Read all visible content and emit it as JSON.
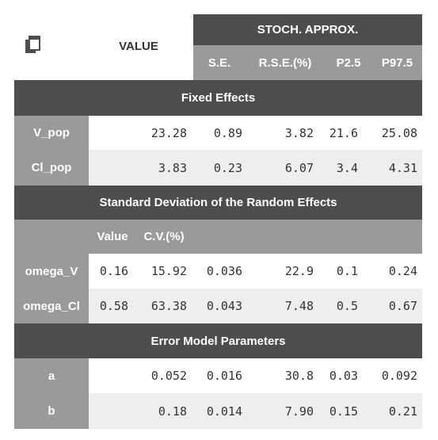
{
  "header": {
    "value_label": "VALUE",
    "stoch_label": "STOCH. APPROX.",
    "col_se": "S.E.",
    "col_rse": "R.S.E.(%)",
    "col_p25": "P2.5",
    "col_p975": "P97.5",
    "copy_icon": "copy-icon"
  },
  "sections": {
    "fixed": "Fixed Effects",
    "sd": "Standard Deviation of the Random Effects",
    "error": "Error Model Parameters"
  },
  "sd_subheader": {
    "value": "Value",
    "cv": "C.V.(%)"
  },
  "rows": [
    {
      "name": "V_pop",
      "value": "23.28",
      "se": "0.89",
      "rse": "3.82",
      "p25": "21.6",
      "p975": "25.08"
    },
    {
      "name": "Cl_pop",
      "value": "3.83",
      "se": "0.23",
      "rse": "6.07",
      "p25": "3.4",
      "p975": "4.31"
    },
    {
      "name": "omega_V",
      "value": "0.16",
      "cv": "15.92",
      "se": "0.036",
      "rse": "22.9",
      "p25": "0.1",
      "p975": "0.24"
    },
    {
      "name": "omega_Cl",
      "value": "0.58",
      "cv": "63.38",
      "se": "0.043",
      "rse": "7.48",
      "p25": "0.5",
      "p975": "0.67"
    },
    {
      "name": "a",
      "value": "0.052",
      "se": "0.016",
      "rse": "30.8",
      "p25": "0.03",
      "p975": "0.092"
    },
    {
      "name": "b",
      "value": "0.18",
      "se": "0.014",
      "rse": "7.90",
      "p25": "0.15",
      "p975": "0.21"
    }
  ],
  "colors": {
    "dark": "#4d4d4d",
    "mid": "#9a9a9a",
    "light": "#eeeeee"
  }
}
